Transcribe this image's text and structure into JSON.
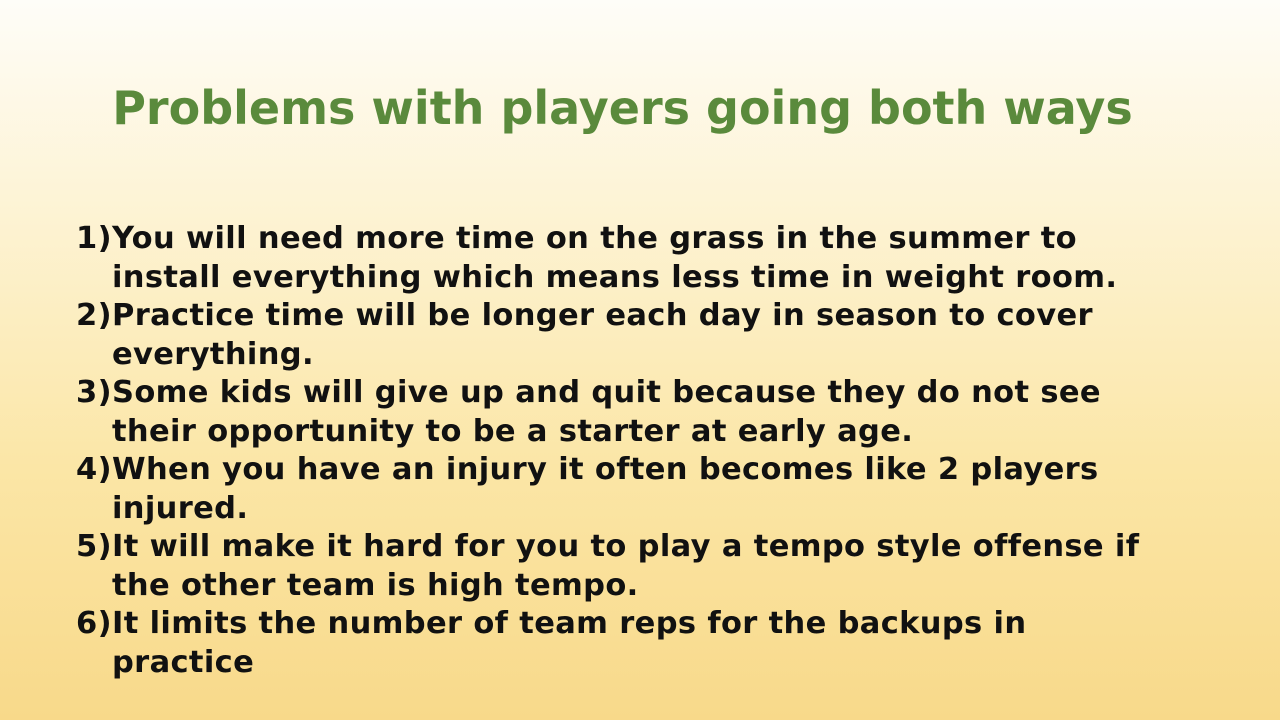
{
  "slide": {
    "title": "Problems with players going both ways",
    "items": [
      {
        "number": "1)",
        "text": "You will need more time on the grass in the summer to install everything which means less time in weight room."
      },
      {
        "number": "2)",
        "text": "Practice time will be longer each day in season to cover everything."
      },
      {
        "number": "3)",
        "text": "Some kids will give up and quit because they do not see their opportunity to be a starter at early age."
      },
      {
        "number": "4)",
        "text": "When you have an injury it often becomes like 2 players injured."
      },
      {
        "number": "5)",
        "text": "It will make it hard for you to play a tempo style offense if the other team is high tempo."
      },
      {
        "number": "6)",
        "text": "It limits the number of team reps for the backups in practice"
      }
    ],
    "colors": {
      "title": "#5a8a3c",
      "body_text": "#111111",
      "background_top": "#fefdf8",
      "background_bottom": "#f8d98a"
    }
  }
}
